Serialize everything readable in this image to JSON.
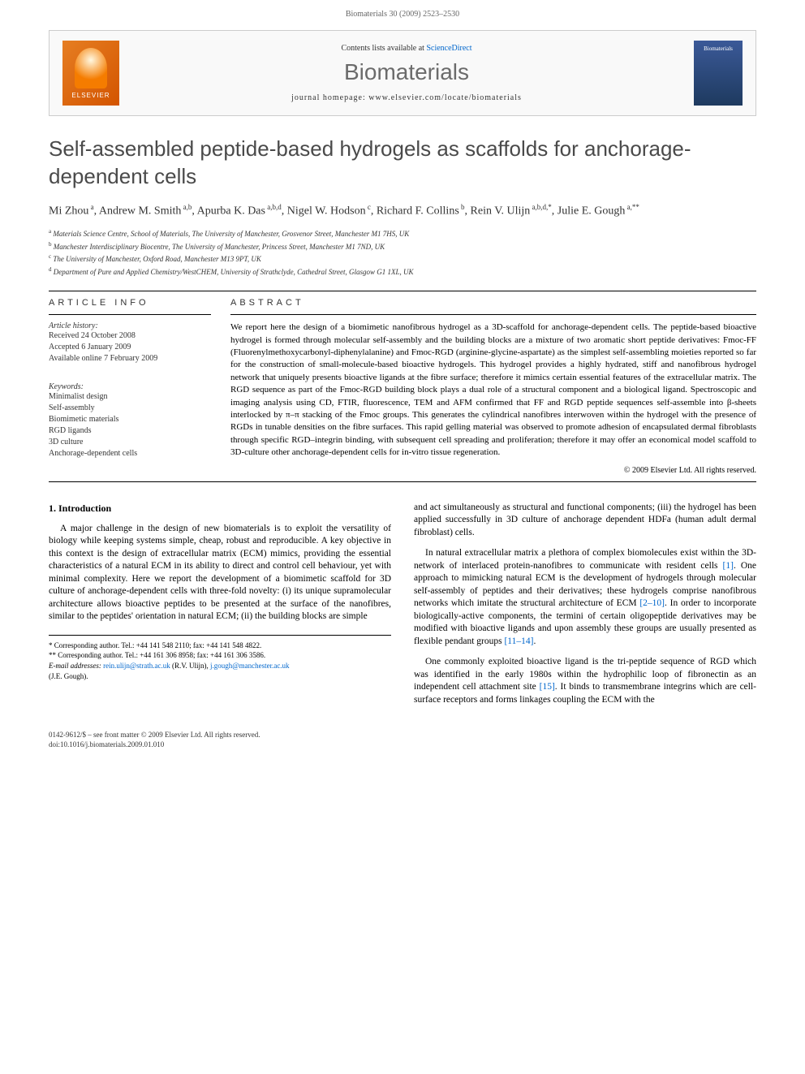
{
  "page_header": "Biomaterials 30 (2009) 2523–2530",
  "journal_box": {
    "contents_prefix": "Contents lists available at ",
    "sciencedirect": "ScienceDirect",
    "journal_name": "Biomaterials",
    "homepage_prefix": "journal homepage: ",
    "homepage_url": "www.elsevier.com/locate/biomaterials",
    "elsevier_label": "ELSEVIER",
    "cover_label": "Biomaterials"
  },
  "title": "Self-assembled peptide-based hydrogels as scaffolds for anchorage-dependent cells",
  "authors_html": "Mi Zhou<sup> a</sup>, Andrew M. Smith<sup> a,b</sup>, Apurba K. Das<sup> a,b,d</sup>, Nigel W. Hodson<sup> c</sup>, Richard F. Collins<sup> b</sup>, Rein V. Ulijn<sup> a,b,d,*</sup>, Julie E. Gough<sup> a,**</sup>",
  "affiliations": {
    "a": "Materials Science Centre, School of Materials, The University of Manchester, Grosvenor Street, Manchester M1 7HS, UK",
    "b": "Manchester Interdisciplinary Biocentre, The University of Manchester, Princess Street, Manchester M1 7ND, UK",
    "c": "The University of Manchester, Oxford Road, Manchester M13 9PT, UK",
    "d": "Department of Pure and Applied Chemistry/WestCHEM, University of Strathclyde, Cathedral Street, Glasgow G1 1XL, UK"
  },
  "article_info": {
    "heading": "ARTICLE INFO",
    "history_label": "Article history:",
    "received": "Received 24 October 2008",
    "accepted": "Accepted 6 January 2009",
    "online": "Available online 7 February 2009",
    "keywords_label": "Keywords:",
    "keywords": [
      "Minimalist design",
      "Self-assembly",
      "Biomimetic materials",
      "RGD ligands",
      "3D culture",
      "Anchorage-dependent cells"
    ]
  },
  "abstract": {
    "heading": "ABSTRACT",
    "text": "We report here the design of a biomimetic nanofibrous hydrogel as a 3D-scaffold for anchorage-dependent cells. The peptide-based bioactive hydrogel is formed through molecular self-assembly and the building blocks are a mixture of two aromatic short peptide derivatives: Fmoc-FF (Fluorenylmethoxycarbonyl-diphenylalanine) and Fmoc-RGD (arginine-glycine-aspartate) as the simplest self-assembling moieties reported so far for the construction of small-molecule-based bioactive hydrogels. This hydrogel provides a highly hydrated, stiff and nanofibrous hydrogel network that uniquely presents bioactive ligands at the fibre surface; therefore it mimics certain essential features of the extracellular matrix. The RGD sequence as part of the Fmoc-RGD building block plays a dual role of a structural component and a biological ligand. Spectroscopic and imaging analysis using CD, FTIR, fluorescence, TEM and AFM confirmed that FF and RGD peptide sequences self-assemble into β-sheets interlocked by π–π stacking of the Fmoc groups. This generates the cylindrical nanofibres interwoven within the hydrogel with the presence of RGDs in tunable densities on the fibre surfaces. This rapid gelling material was observed to promote adhesion of encapsulated dermal fibroblasts through specific RGD–integrin binding, with subsequent cell spreading and proliferation; therefore it may offer an economical model scaffold to 3D-culture other anchorage-dependent cells for in-vitro tissue regeneration.",
    "copyright": "© 2009 Elsevier Ltd. All rights reserved."
  },
  "body": {
    "intro_heading": "1. Introduction",
    "col1_p1": "A major challenge in the design of new biomaterials is to exploit the versatility of biology while keeping systems simple, cheap, robust and reproducible. A key objective in this context is the design of extracellular matrix (ECM) mimics, providing the essential characteristics of a natural ECM in its ability to direct and control cell behaviour, yet with minimal complexity. Here we report the development of a biomimetic scaffold for 3D culture of anchorage-dependent cells with three-fold novelty: (i) its unique supramolecular architecture allows bioactive peptides to be presented at the surface of the nanofibres, similar to the peptides' orientation in natural ECM; (ii) the building blocks are simple",
    "col2_p1": "and act simultaneously as structural and functional components; (iii) the hydrogel has been applied successfully in 3D culture of anchorage dependent HDFa (human adult dermal fibroblast) cells.",
    "col2_p2_pre": "In natural extracellular matrix a plethora of complex biomolecules exist within the 3D-network of interlaced protein-nanofibres to communicate with resident cells ",
    "col2_p2_cite1": "[1]",
    "col2_p2_mid": ". One approach to mimicking natural ECM is the development of hydrogels through molecular self-assembly of peptides and their derivatives; these hydrogels comprise nanofibrous networks which imitate the structural architecture of ECM ",
    "col2_p2_cite2": "[2–10]",
    "col2_p2_post": ". In order to incorporate biologically-active components, the termini of certain oligopeptide derivatives may be modified with bioactive ligands and upon assembly these groups are usually presented as flexible pendant groups ",
    "col2_p2_cite3": "[11–14]",
    "col2_p2_end": ".",
    "col2_p3_pre": "One commonly exploited bioactive ligand is the tri-peptide sequence of RGD which was identified in the early 1980s within the hydrophilic loop of fibronectin as an independent cell attachment site ",
    "col2_p3_cite": "[15]",
    "col2_p3_post": ". It binds to transmembrane integrins which are cell-surface receptors and forms linkages coupling the ECM with the"
  },
  "footnotes": {
    "corr1": "* Corresponding author. Tel.: +44 141 548 2110; fax: +44 141 548 4822.",
    "corr2": "** Corresponding author. Tel.: +44 161 306 8958; fax: +44 161 306 3586.",
    "email_label": "E-mail addresses: ",
    "email1": "rein.ulijn@strath.ac.uk",
    "email1_name": " (R.V. Ulijn), ",
    "email2": "j.gough@manchester.ac.uk",
    "email2_name": " (J.E. Gough)."
  },
  "footer": {
    "line1": "0142-9612/$ – see front matter © 2009 Elsevier Ltd. All rights reserved.",
    "line2": "doi:10.1016/j.biomaterials.2009.01.010"
  },
  "colors": {
    "link": "#0066cc",
    "heading_gray": "#4a4a4a",
    "journal_gray": "#6b6b6b",
    "border": "#cccccc"
  }
}
